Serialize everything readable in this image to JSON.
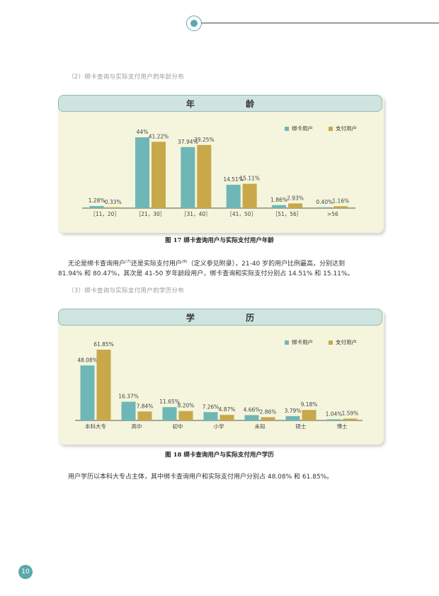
{
  "colors": {
    "teal": "#6eb7b6",
    "gold": "#c9a84a",
    "accent": "#5aa9ab"
  },
  "section2_heading": "（2）绑卡查询与实际支付用户的年龄分布",
  "section3_heading": "（3）绑卡查询与实际支付用户的学历分布",
  "chart1": {
    "title": "年 龄",
    "legend": [
      "绑卡用户",
      "支付用户"
    ],
    "caption": "图 17  绑卡查询用户与实际支付用户年龄"
  },
  "chart2": {
    "title": "学 历",
    "legend": [
      "绑卡用户",
      "支付用户"
    ],
    "caption": "图 18 绑卡查询用户与实际支付用户学历"
  },
  "paragraph1": {
    "line1_a": "无论是绑卡查询用户",
    "sup1": "(7)",
    "line1_b": "还是实际支付用户",
    "sup2": "(8)",
    "line1_c": "（定义参见附录），21-40 岁的用户比例最高，分别达到",
    "line2": "81.94% 和 80.47%，其次是 41-50 岁年龄段用户，绑卡查询和实际支付分别占 14.51% 和 15.11%。"
  },
  "paragraph2": "用户学历以本科大专占主体，其中绑卡查询用户和实际支付用户分别占 48.08% 和 61.85%。",
  "page_number": "10",
  "chart_data": [
    {
      "type": "bar",
      "categories": [
        "［11，20］",
        "［21，30］",
        "［31，40］",
        "［41，50］",
        "［51，56］",
        ">56"
      ],
      "series": [
        {
          "name": "绑卡用户",
          "values": [
            1.28,
            44,
            37.94,
            14.51,
            1.86,
            0.4
          ],
          "labels": [
            "1.28%",
            "44%",
            "37.94%",
            "14.51%",
            "1.86%",
            "0.40%"
          ]
        },
        {
          "name": "支付用户",
          "values": [
            0.33,
            41.22,
            39.25,
            15.11,
            2.93,
            1.16
          ],
          "labels": [
            "0.33%",
            "41.22%",
            "39.25%",
            "15.11%",
            "2.93%",
            "1.16%"
          ]
        }
      ],
      "ylim": [
        0,
        44
      ],
      "legend_position": "top-right"
    },
    {
      "type": "bar",
      "categories": [
        "本科大专",
        "高中",
        "初中",
        "小学",
        "未知",
        "硕士",
        "博士"
      ],
      "series": [
        {
          "name": "绑卡用户",
          "values": [
            48.08,
            16.37,
            11.65,
            7.26,
            4.66,
            3.79,
            1.04
          ],
          "labels": [
            "48.08%",
            "16.37%",
            "11.65%",
            "7.26%",
            "4.66%",
            "3.79%",
            "1.04%"
          ]
        },
        {
          "name": "支付用户",
          "values": [
            61.85,
            7.84,
            8.2,
            4.87,
            2.86,
            9.18,
            1.59
          ],
          "labels": [
            "61.85%",
            "7.84%",
            "8.20%",
            "4.87%",
            "2.86%",
            "9.18%",
            "1.59%"
          ]
        }
      ],
      "ylim": [
        0,
        61.85
      ],
      "legend_position": "top-right"
    }
  ]
}
